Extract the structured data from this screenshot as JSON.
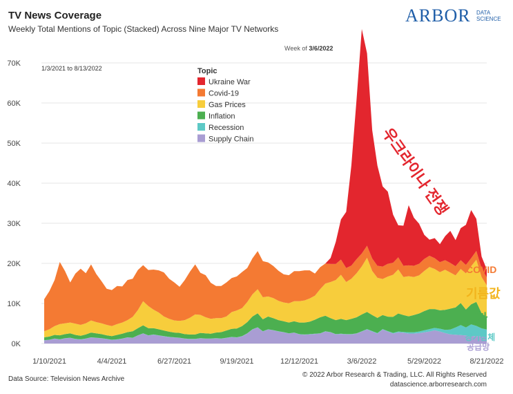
{
  "header": {
    "title": "TV News Coverage",
    "subtitle": "Weekly Total Mentions of Topic (Stacked) Across Nine Major TV Networks"
  },
  "logo": {
    "big": "ARBOR",
    "small1": "DATA",
    "small2": "SCIENCE"
  },
  "footer": {
    "source": "Data Source: Television News Archive",
    "copyright": "© 2022 Arbor Research & Trading, LLC. All Rights Reserved",
    "url": "datascience.arborresearch.com"
  },
  "annotations": {
    "date_range": "1/3/2021 to 8/13/2022",
    "peak_prefix": "Week of",
    "peak_date": "3/6/2022",
    "korean_war": "우크라이나 전쟁",
    "korean_covid": "COVID",
    "korean_gas": "기름값",
    "korean_inflation": "물가",
    "korean_recession": "경기침체",
    "korean_supply": "공급망"
  },
  "colors": {
    "ukraine": "#e3262e",
    "covid": "#f47a33",
    "gas": "#f7cd3c",
    "inflation": "#4caf50",
    "recession": "#5dc9c6",
    "supply": "#a99dd3"
  },
  "chart_data": {
    "type": "area",
    "stacked": true,
    "legend_title": "Topic",
    "legend_position": "top-center",
    "ylim": [
      0,
      75000
    ],
    "y_ticks": [
      "0K",
      "10K",
      "20K",
      "30K",
      "40K",
      "50K",
      "60K",
      "70K"
    ],
    "x_ticks": [
      {
        "index": 1,
        "label": "1/10/2021"
      },
      {
        "index": 13,
        "label": "4/4/2021"
      },
      {
        "index": 25,
        "label": "6/27/2021"
      },
      {
        "index": 37,
        "label": "9/19/2021"
      },
      {
        "index": 49,
        "label": "12/12/2021"
      },
      {
        "index": 61,
        "label": "3/6/2022"
      },
      {
        "index": 73,
        "label": "5/29/2022"
      },
      {
        "index": 85,
        "label": "8/21/2022"
      }
    ],
    "x_start": "1/3/2021",
    "x_interval": "weekly",
    "series": [
      {
        "name": "Supply Chain",
        "color_key": "supply",
        "values": [
          800,
          900,
          1200,
          1000,
          1300,
          1400,
          1100,
          1000,
          1200,
          1500,
          1400,
          1300,
          1100,
          900,
          1000,
          1200,
          1500,
          1400,
          2000,
          2500,
          2000,
          2200,
          2000,
          1800,
          1600,
          1500,
          1400,
          1200,
          1100,
          1100,
          1300,
          1200,
          1200,
          1300,
          1200,
          1400,
          1600,
          1500,
          1800,
          2500,
          3500,
          4000,
          3000,
          3500,
          3300,
          3000,
          2800,
          2500,
          2700,
          2300,
          2200,
          2300,
          2400,
          2500,
          3000,
          2800,
          2300,
          2400,
          2300,
          2300,
          2500,
          3000,
          3500,
          3000,
          2500,
          3500,
          3000,
          2500,
          2800,
          2700,
          2500,
          2500,
          2600,
          2800,
          3000,
          3300,
          3000,
          2600,
          2300,
          2200,
          2100,
          2000,
          1800,
          1900,
          1800,
          1700
        ]
      },
      {
        "name": "Recession",
        "color_key": "recession",
        "values": [
          50,
          50,
          50,
          50,
          50,
          50,
          50,
          50,
          50,
          50,
          50,
          50,
          50,
          50,
          50,
          50,
          50,
          50,
          50,
          50,
          50,
          50,
          50,
          50,
          50,
          50,
          50,
          50,
          50,
          50,
          50,
          50,
          50,
          50,
          50,
          50,
          50,
          50,
          50,
          50,
          50,
          50,
          50,
          50,
          50,
          50,
          50,
          50,
          50,
          50,
          50,
          50,
          50,
          50,
          50,
          50,
          50,
          50,
          50,
          50,
          50,
          50,
          100,
          100,
          100,
          100,
          100,
          150,
          200,
          200,
          300,
          300,
          400,
          500,
          600,
          600,
          700,
          800,
          1200,
          1800,
          2500,
          2000,
          3000,
          2500,
          2000,
          1800
        ]
      },
      {
        "name": "Inflation",
        "color_key": "inflation",
        "values": [
          700,
          800,
          900,
          1000,
          1000,
          1100,
          1000,
          900,
          1000,
          1200,
          1100,
          1000,
          900,
          900,
          1100,
          1200,
          1300,
          1600,
          1800,
          2000,
          1800,
          1600,
          1500,
          1400,
          1300,
          1200,
          1200,
          1100,
          1100,
          1100,
          1300,
          1300,
          1200,
          1400,
          1600,
          1800,
          2000,
          2200,
          2500,
          2800,
          3200,
          3500,
          3000,
          3200,
          3000,
          2800,
          2700,
          2700,
          2800,
          2900,
          3000,
          3100,
          3500,
          4000,
          3900,
          3500,
          3500,
          3700,
          3500,
          3800,
          4000,
          4200,
          4300,
          4000,
          3800,
          3500,
          3600,
          4000,
          4500,
          4200,
          4000,
          4300,
          4500,
          4800,
          5000,
          4700,
          4600,
          5000,
          5200,
          5000,
          5500,
          4500,
          5000,
          6000,
          3800,
          3000
        ]
      },
      {
        "name": "Gas Prices",
        "color_key": "gas",
        "values": [
          1500,
          1800,
          2200,
          2800,
          2700,
          2700,
          2800,
          2700,
          2800,
          3000,
          2800,
          2700,
          2600,
          2500,
          2700,
          2800,
          3000,
          3600,
          4500,
          6000,
          5500,
          4600,
          4200,
          3500,
          3200,
          3000,
          3000,
          3500,
          4200,
          5000,
          4500,
          4000,
          3700,
          3600,
          3500,
          3500,
          4200,
          4500,
          4500,
          5000,
          5500,
          6000,
          5500,
          5000,
          5000,
          4800,
          4700,
          4800,
          5000,
          5300,
          5500,
          5800,
          6000,
          7000,
          8000,
          9000,
          10000,
          11000,
          9500,
          10000,
          11000,
          12000,
          13500,
          11000,
          10000,
          9000,
          10000,
          10500,
          11000,
          9500,
          10000,
          9500,
          9500,
          10000,
          10500,
          10000,
          9500,
          10000,
          9000,
          8000,
          8500,
          9000,
          9500,
          10500,
          9000,
          8000
        ]
      },
      {
        "name": "Covid-19",
        "color_key": "covid",
        "values": [
          8000,
          9500,
          11500,
          15500,
          13000,
          10000,
          12500,
          14000,
          12500,
          14000,
          12000,
          10500,
          9000,
          9000,
          9500,
          9000,
          10000,
          9500,
          10000,
          9000,
          9000,
          10000,
          10500,
          11000,
          10000,
          9500,
          8500,
          10000,
          11500,
          12500,
          10500,
          10500,
          9000,
          8000,
          8000,
          8500,
          8500,
          8500,
          9000,
          8500,
          9000,
          9500,
          9000,
          8500,
          8000,
          7500,
          7000,
          7000,
          7500,
          7500,
          7500,
          7000,
          5500,
          5500,
          5000,
          4500,
          4000,
          3800,
          3500,
          3300,
          3500,
          3200,
          3000,
          3100,
          3000,
          3100,
          3200,
          3000,
          3000,
          2800,
          2700,
          2800,
          2900,
          3000,
          2800,
          2700,
          2500,
          2400,
          2400,
          2300,
          2200,
          2100,
          2000,
          2200,
          2100,
          2000
        ]
      },
      {
        "name": "Ukraine War",
        "color_key": "ukraine",
        "values": [
          0,
          0,
          0,
          0,
          0,
          0,
          0,
          0,
          0,
          0,
          0,
          0,
          0,
          0,
          0,
          0,
          0,
          0,
          0,
          0,
          0,
          0,
          0,
          0,
          0,
          0,
          0,
          0,
          0,
          0,
          0,
          0,
          0,
          0,
          0,
          0,
          0,
          0,
          0,
          0,
          0,
          0,
          0,
          0,
          0,
          0,
          0,
          0,
          0,
          0,
          0,
          0,
          0,
          0,
          0,
          1500,
          5500,
          10000,
          14000,
          25000,
          40000,
          56000,
          48000,
          32000,
          25000,
          20000,
          18000,
          12000,
          8000,
          10000,
          15000,
          12000,
          10000,
          6000,
          4000,
          5000,
          4500,
          6000,
          8000,
          6500,
          8000,
          10000,
          12000,
          8000,
          3000,
          2000
        ]
      }
    ]
  }
}
